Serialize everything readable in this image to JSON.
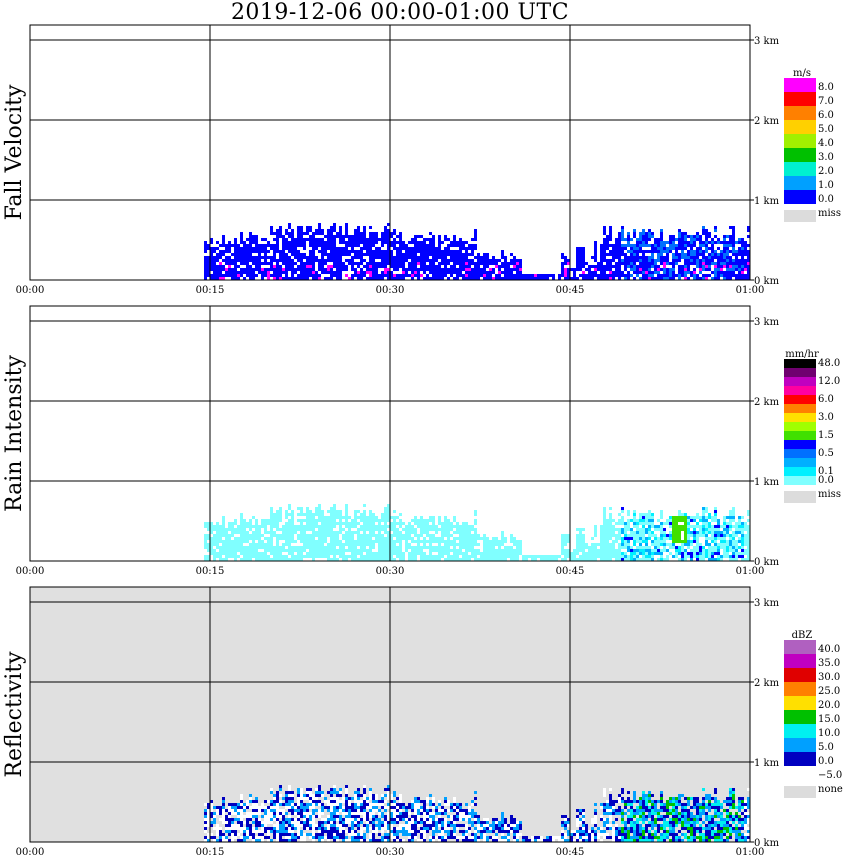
{
  "title": "2019-12-06   00:00-01:00 UTC",
  "x_ticks": [
    "00:00",
    "00:15",
    "00:30",
    "00:45",
    "01:00"
  ],
  "y_ticks": [
    "0 km",
    "1 km",
    "2 km",
    "3 km"
  ],
  "chart_data": [
    {
      "type": "heatmap",
      "ylabel": "Fall Velocity",
      "xlim": [
        "00:00",
        "01:00"
      ],
      "ylim_km": [
        0,
        3
      ],
      "grid": true,
      "background": "#ffffff",
      "colorbar": {
        "unit": "m/s",
        "levels": [
          {
            "label": "8.0",
            "color": "#ff00ff"
          },
          {
            "label": "7.0",
            "color": "#ff0000"
          },
          {
            "label": "6.0",
            "color": "#ff8000"
          },
          {
            "label": "5.0",
            "color": "#ffd000"
          },
          {
            "label": "4.0",
            "color": "#a0f000"
          },
          {
            "label": "3.0",
            "color": "#00c000"
          },
          {
            "label": "2.0",
            "color": "#00f0d0"
          },
          {
            "label": "1.0",
            "color": "#00a0ff"
          },
          {
            "label": "0.0",
            "color": "#0000ff"
          }
        ],
        "extra": [
          {
            "label": "miss",
            "color": "#dcdcdc"
          }
        ]
      }
    },
    {
      "type": "heatmap",
      "ylabel": "Rain Intensity",
      "xlim": [
        "00:00",
        "01:00"
      ],
      "ylim_km": [
        0,
        3
      ],
      "grid": true,
      "background": "#ffffff",
      "colorbar": {
        "unit": "mm/hr",
        "levels": [
          {
            "label": "48.0",
            "color": "#000000"
          },
          {
            "label": "",
            "color": "#700070"
          },
          {
            "label": "12.0",
            "color": "#c000c0"
          },
          {
            "label": "",
            "color": "#ff00a0"
          },
          {
            "label": "6.0",
            "color": "#ff0000"
          },
          {
            "label": "",
            "color": "#ff8000"
          },
          {
            "label": "3.0",
            "color": "#ffe000"
          },
          {
            "label": "",
            "color": "#a0ff00"
          },
          {
            "label": "1.5",
            "color": "#40e000"
          },
          {
            "label": "",
            "color": "#0000ff"
          },
          {
            "label": "0.5",
            "color": "#0070ff"
          },
          {
            "label": "",
            "color": "#00b0ff"
          },
          {
            "label": "0.1",
            "color": "#00f0ff"
          },
          {
            "label": "0.0",
            "color": "#80ffff"
          }
        ],
        "extra": [
          {
            "label": "miss",
            "color": "#dcdcdc"
          }
        ]
      }
    },
    {
      "type": "heatmap",
      "ylabel": "Reflectivity",
      "xlim": [
        "00:00",
        "01:00"
      ],
      "ylim_km": [
        0,
        3
      ],
      "grid": true,
      "background": "#e0e0e0",
      "colorbar": {
        "unit": "dBZ",
        "levels": [
          {
            "label": "40.0",
            "color": "#b060c0"
          },
          {
            "label": "35.0",
            "color": "#c000c0"
          },
          {
            "label": "30.0",
            "color": "#e00000"
          },
          {
            "label": "25.0",
            "color": "#ff8000"
          },
          {
            "label": "20.0",
            "color": "#ffe000"
          },
          {
            "label": "15.0",
            "color": "#00c000"
          },
          {
            "label": "10.0",
            "color": "#00f0f0"
          },
          {
            "label": "5.0",
            "color": "#00a0ff"
          },
          {
            "label": "0.0",
            "color": "#0000c0"
          },
          {
            "label": "−5.0",
            "color": "#ffffff"
          }
        ],
        "extra": [
          {
            "label": "none",
            "color": "#dcdcdc"
          }
        ]
      }
    }
  ]
}
